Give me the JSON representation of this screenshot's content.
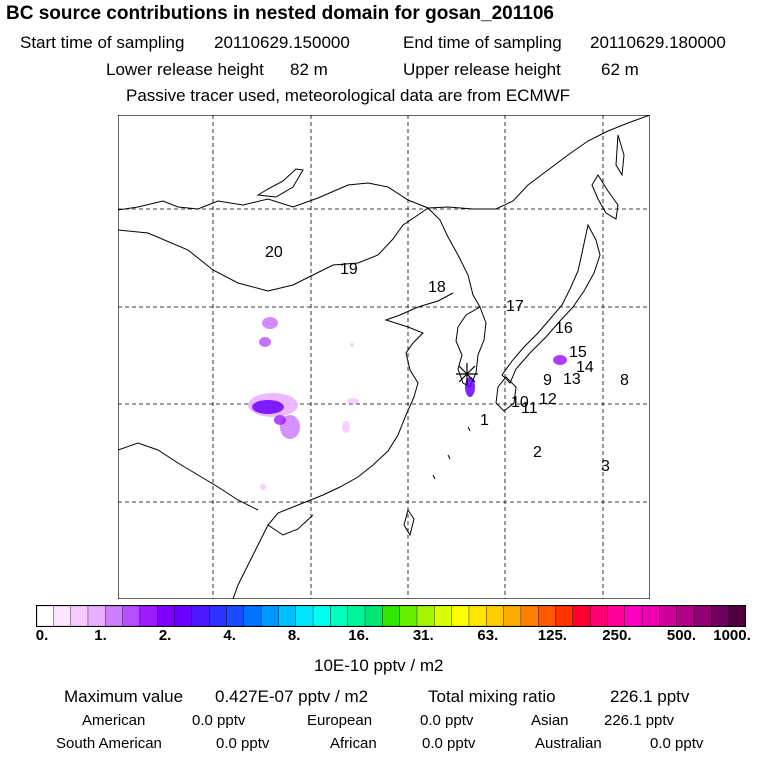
{
  "title": "BC  source contributions in nested domain for gosan_201106",
  "header": {
    "start_label": "Start time of sampling",
    "start_value": "20110629.150000",
    "end_label": "End time of sampling",
    "end_value": "20110629.180000",
    "lower_label": "Lower release height",
    "lower_value": "82 m",
    "upper_label": "Upper release height",
    "upper_value": "62 m",
    "note": "Passive tracer used, meteorological data are from ECMWF"
  },
  "map": {
    "region_labels": [
      "1",
      "2",
      "3",
      "8",
      "9",
      "10",
      "11",
      "12",
      "13",
      "14",
      "15",
      "16",
      "17",
      "18",
      "19",
      "20"
    ],
    "receptor_marker": "star-receptor-icon"
  },
  "colorbar": {
    "ticks": [
      "0.",
      "1.",
      "2.",
      "4.",
      "8.",
      "16.",
      "31.",
      "63.",
      "125.",
      "250.",
      "500.",
      "1000."
    ],
    "colors": [
      "#ffffff",
      "#fbe6ff",
      "#f4ccff",
      "#eab0ff",
      "#cf7dff",
      "#b64dff",
      "#9c1cff",
      "#8000ff",
      "#6a00ff",
      "#4d1aff",
      "#2d33ff",
      "#1a4dff",
      "#0073ff",
      "#0099ff",
      "#00bfff",
      "#00e6ff",
      "#00ffee",
      "#00ffbf",
      "#00f59a",
      "#00e673",
      "#33e600",
      "#66f000",
      "#a6f500",
      "#d9ff00",
      "#ffff00",
      "#ffe600",
      "#ffcc00",
      "#ffaa00",
      "#ff8000",
      "#ff5a00",
      "#ff3300",
      "#ff0030",
      "#ff0070",
      "#ff0099",
      "#ff00c0",
      "#f000b0",
      "#d0009a",
      "#b00088",
      "#900070",
      "#700060",
      "#500040"
    ],
    "unit": "10E-10 pptv / m2"
  },
  "stats": {
    "max_label": "Maximum value",
    "max_value": "0.427E-07 pptv / m2",
    "total_label": "Total mixing ratio",
    "total_value": "226.1 pptv",
    "american_label": "American",
    "american_value": "0.0 pptv",
    "european_label": "European",
    "european_value": "0.0 pptv",
    "asian_label": "Asian",
    "asian_value": "226.1 pptv",
    "south_american_label": "South American",
    "south_american_value": "0.0 pptv",
    "african_label": "African",
    "african_value": "0.0 pptv",
    "australian_label": "Australian",
    "australian_value": "0.0 pptv"
  }
}
